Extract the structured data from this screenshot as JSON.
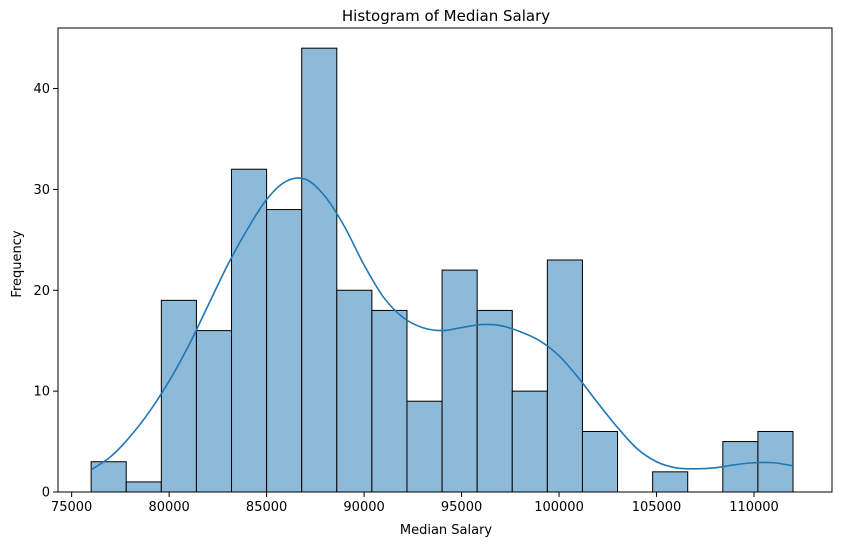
{
  "chart_data": {
    "type": "bar",
    "subtype": "histogram",
    "title": "Histogram of Median Salary",
    "xlabel": "Median Salary",
    "ylabel": "Frequency",
    "xlim": [
      74300,
      114000
    ],
    "ylim": [
      0,
      46
    ],
    "x_ticks": [
      75000,
      80000,
      85000,
      90000,
      95000,
      100000,
      105000,
      110000
    ],
    "y_ticks": [
      0,
      10,
      20,
      30,
      40
    ],
    "bin_start": 76000,
    "bin_width": 1800,
    "bins": [
      {
        "x0": 76000,
        "x1": 77800,
        "count": 3
      },
      {
        "x0": 77800,
        "x1": 79600,
        "count": 1
      },
      {
        "x0": 79600,
        "x1": 81400,
        "count": 19
      },
      {
        "x0": 81400,
        "x1": 83200,
        "count": 16
      },
      {
        "x0": 83200,
        "x1": 85000,
        "count": 32
      },
      {
        "x0": 85000,
        "x1": 86800,
        "count": 28
      },
      {
        "x0": 86800,
        "x1": 88600,
        "count": 44
      },
      {
        "x0": 88600,
        "x1": 90400,
        "count": 20
      },
      {
        "x0": 90400,
        "x1": 92200,
        "count": 18
      },
      {
        "x0": 92200,
        "x1": 94000,
        "count": 9
      },
      {
        "x0": 94000,
        "x1": 95800,
        "count": 22
      },
      {
        "x0": 95800,
        "x1": 97600,
        "count": 18
      },
      {
        "x0": 97600,
        "x1": 99400,
        "count": 10
      },
      {
        "x0": 99400,
        "x1": 101200,
        "count": 23
      },
      {
        "x0": 101200,
        "x1": 103000,
        "count": 6
      },
      {
        "x0": 103000,
        "x1": 104800,
        "count": 0
      },
      {
        "x0": 104800,
        "x1": 106600,
        "count": 2
      },
      {
        "x0": 106600,
        "x1": 108400,
        "count": 0
      },
      {
        "x0": 108400,
        "x1": 110200,
        "count": 5
      },
      {
        "x0": 110200,
        "x1": 112000,
        "count": 6
      }
    ],
    "kde": {
      "x": [
        76000,
        77000,
        78000,
        79000,
        80000,
        81000,
        82000,
        83000,
        84000,
        85000,
        86000,
        87000,
        88000,
        89000,
        90000,
        91000,
        92000,
        93000,
        94000,
        95000,
        96000,
        97000,
        98000,
        99000,
        100000,
        101000,
        102000,
        103000,
        104000,
        105000,
        106000,
        107000,
        108000,
        109000,
        110000,
        111000,
        112000
      ],
      "y": [
        2.2,
        3.5,
        5.5,
        8.0,
        11.0,
        14.5,
        18.5,
        22.5,
        26.0,
        29.0,
        30.8,
        31.0,
        29.3,
        26.3,
        22.5,
        19.3,
        17.3,
        16.3,
        16.0,
        16.3,
        16.6,
        16.5,
        15.9,
        15.0,
        13.5,
        11.3,
        8.8,
        6.4,
        4.3,
        3.0,
        2.4,
        2.3,
        2.4,
        2.7,
        2.9,
        2.9,
        2.6
      ]
    },
    "colors": {
      "bar_fill": "#8ebad9",
      "bar_edge": "#000000",
      "kde_line": "#1f77b4"
    },
    "grid": false,
    "legend": "none"
  }
}
